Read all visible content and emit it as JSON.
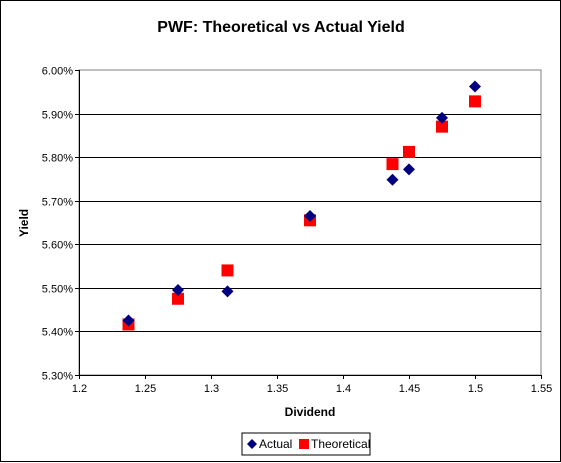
{
  "chart_data": {
    "type": "scatter",
    "title": "PWF: Theoretical vs Actual Yield",
    "xlabel": "Dividend",
    "ylabel": "Yield",
    "xlim": [
      1.2,
      1.55
    ],
    "ylim": [
      0.053,
      0.06
    ],
    "x_ticks": [
      1.2,
      1.25,
      1.3,
      1.35,
      1.4,
      1.45,
      1.5,
      1.55
    ],
    "x_tick_labels": [
      "1.2",
      "1.25",
      "1.3",
      "1.35",
      "1.4",
      "1.45",
      "1.5",
      "1.55"
    ],
    "y_ticks": [
      0.053,
      0.054,
      0.055,
      0.056,
      0.057,
      0.058,
      0.059,
      0.06
    ],
    "y_tick_labels": [
      "5.30%",
      "5.40%",
      "5.50%",
      "5.60%",
      "5.70%",
      "5.80%",
      "5.90%",
      "6.00%"
    ],
    "grid": "horizontal major gridlines",
    "legend_position": "bottom",
    "series": [
      {
        "name": "Actual",
        "marker": "diamond",
        "color": "#000080",
        "x": [
          1.2375,
          1.275,
          1.3125,
          1.375,
          1.4375,
          1.45,
          1.475,
          1.5
        ],
        "y": [
          0.05425,
          0.05495,
          0.05492,
          0.05665,
          0.05748,
          0.05772,
          0.0589,
          0.05962
        ]
      },
      {
        "name": "Theoretical",
        "marker": "square",
        "color": "#ff0000",
        "x": [
          1.2375,
          1.275,
          1.3125,
          1.375,
          1.4375,
          1.45,
          1.475,
          1.5
        ],
        "y": [
          0.05416,
          0.05475,
          0.0554,
          0.05655,
          0.05784,
          0.05812,
          0.0587,
          0.05928
        ]
      }
    ]
  }
}
